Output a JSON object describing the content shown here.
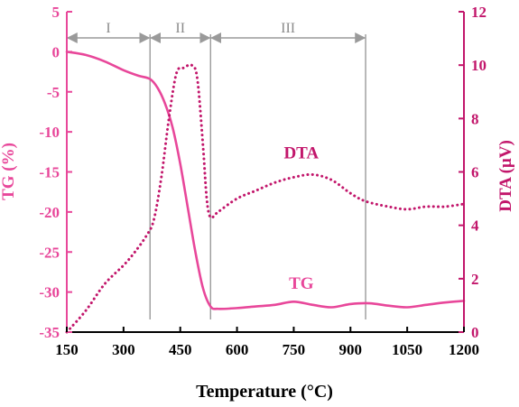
{
  "chart_data": {
    "type": "line",
    "xlabel": "Temperature (°C)",
    "ylabel_left": "TG (%)",
    "ylabel_right": "DTA (μV)",
    "xlim": [
      150,
      1200
    ],
    "ylim_left": [
      -35,
      5
    ],
    "ylim_right": [
      0,
      12
    ],
    "x_ticks": [
      150,
      300,
      450,
      600,
      750,
      900,
      1050,
      1200
    ],
    "y_left_ticks": [
      5,
      0,
      -5,
      -10,
      -15,
      -20,
      -25,
      -30,
      -35
    ],
    "y_right_ticks": [
      0,
      2,
      4,
      6,
      8,
      10,
      12
    ],
    "stage_boundaries": [
      370,
      530,
      940
    ],
    "stages": [
      {
        "label": "I",
        "from": 150,
        "to": 370
      },
      {
        "label": "II",
        "from": 370,
        "to": 530
      },
      {
        "label": "III",
        "from": 530,
        "to": 940
      }
    ],
    "series": [
      {
        "name": "TG",
        "axis": "left",
        "style": "solid",
        "color": "#e8479a",
        "x": [
          150,
          200,
          250,
          300,
          340,
          370,
          390,
          410,
          430,
          450,
          470,
          490,
          510,
          530,
          550,
          600,
          650,
          700,
          750,
          800,
          850,
          900,
          950,
          1000,
          1050,
          1100,
          1150,
          1200
        ],
        "y": [
          0,
          -0.4,
          -1.2,
          -2.3,
          -3.0,
          -3.4,
          -4.5,
          -6.5,
          -9.5,
          -14.0,
          -19.5,
          -25.0,
          -29.5,
          -31.8,
          -32.1,
          -32.0,
          -31.8,
          -31.6,
          -31.2,
          -31.6,
          -31.9,
          -31.5,
          -31.4,
          -31.7,
          -31.9,
          -31.6,
          -31.3,
          -31.1
        ]
      },
      {
        "name": "DTA",
        "axis": "right",
        "style": "dotted",
        "color": "#c2166b",
        "x": [
          150,
          200,
          250,
          300,
          330,
          360,
          380,
          400,
          420,
          440,
          460,
          480,
          495,
          510,
          520,
          530,
          550,
          600,
          650,
          700,
          750,
          800,
          850,
          900,
          940,
          1000,
          1050,
          1100,
          1150,
          1200
        ],
        "y": [
          0,
          0.8,
          1.8,
          2.5,
          3.0,
          3.6,
          4.2,
          5.8,
          8.0,
          9.7,
          9.9,
          10.0,
          9.5,
          7.0,
          5.0,
          4.3,
          4.5,
          5.0,
          5.3,
          5.6,
          5.8,
          5.9,
          5.7,
          5.2,
          4.9,
          4.7,
          4.6,
          4.7,
          4.7,
          4.8
        ]
      }
    ],
    "annotations": [
      {
        "text": "DTA",
        "x": 770,
        "y_right": 6.5
      },
      {
        "text": "TG",
        "x": 770,
        "y_left": -29.6
      }
    ]
  }
}
